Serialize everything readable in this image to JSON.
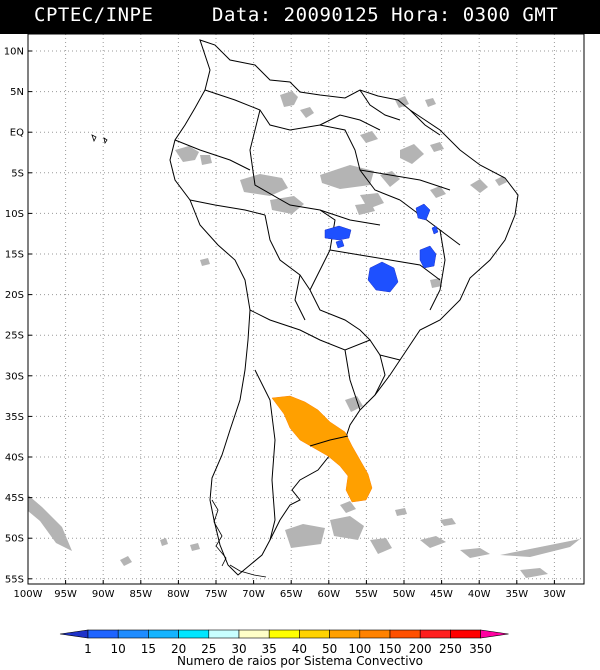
{
  "header": {
    "source": "CPTEC/INPE",
    "datetime": "Data: 20090125 Hora: 0300 GMT"
  },
  "map": {
    "lat_labels": [
      "10N",
      "5N",
      "EQ",
      "5S",
      "10S",
      "15S",
      "20S",
      "25S",
      "30S",
      "35S",
      "40S",
      "45S",
      "50S",
      "55S"
    ],
    "lon_labels": [
      "100W",
      "95W",
      "90W",
      "85W",
      "80W",
      "75W",
      "70W",
      "65W",
      "60W",
      "55W",
      "50W",
      "45W",
      "40W",
      "35W",
      "30W"
    ]
  },
  "legend": {
    "values": [
      "1",
      "10",
      "15",
      "20",
      "25",
      "30",
      "35",
      "40",
      "50",
      "100",
      "150",
      "200",
      "250",
      "350"
    ],
    "colors": [
      "#1e32c8",
      "#1e64ff",
      "#1e8cff",
      "#14b4ff",
      "#00e6ff",
      "#c8ffff",
      "#ffffc8",
      "#ffff00",
      "#ffd200",
      "#ffa000",
      "#ff8200",
      "#ff5000",
      "#ff1e1e",
      "#ff0000",
      "#ff00a0"
    ],
    "title": "Numero de raios por Sistema Convectivo"
  }
}
